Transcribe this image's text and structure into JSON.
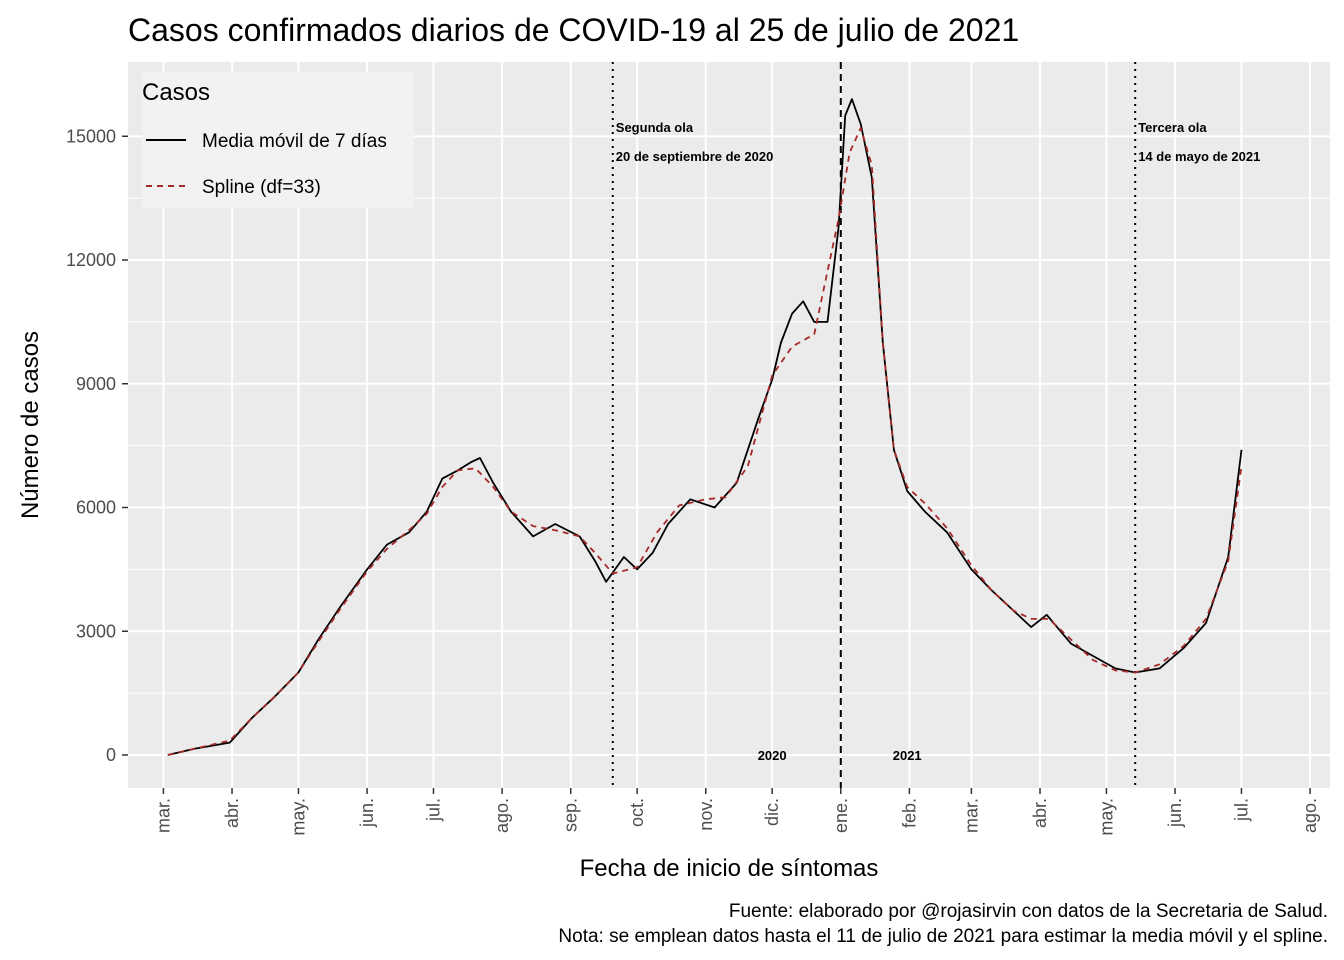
{
  "chart_data": {
    "type": "line",
    "title": "Casos confirmados diarios de COVID-19 al 25 de julio de 2021",
    "xlabel": "Fecha de inicio de síntomas",
    "ylabel": "Número de casos",
    "x_ticks": [
      "mar.",
      "abr.",
      "may.",
      "jun.",
      "jul.",
      "ago.",
      "sep.",
      "oct.",
      "nov.",
      "dic.",
      "ene.",
      "feb.",
      "mar.",
      "abr.",
      "may.",
      "jun.",
      "jul.",
      "ago."
    ],
    "x_tick_dates": [
      "2020-03-01",
      "2020-04-01",
      "2020-05-01",
      "2020-06-01",
      "2020-07-01",
      "2020-08-01",
      "2020-09-01",
      "2020-10-01",
      "2020-11-01",
      "2020-12-01",
      "2021-01-01",
      "2021-02-01",
      "2021-03-01",
      "2021-04-01",
      "2021-05-01",
      "2021-06-01",
      "2021-07-01",
      "2021-08-01"
    ],
    "xlim": [
      "2020-02-14",
      "2021-08-10"
    ],
    "y_ticks": [
      0,
      3000,
      6000,
      9000,
      12000,
      15000
    ],
    "ylim": [
      -800,
      16800
    ],
    "legend": {
      "title": "Casos",
      "position": "top-left",
      "entries": [
        "Media móvil de 7 días",
        "Spline (df=33)"
      ]
    },
    "series": [
      {
        "name": "Media móvil de 7 días",
        "color": "#000000",
        "style": "solid",
        "x": [
          "2020-03-03",
          "2020-03-15",
          "2020-03-31",
          "2020-04-10",
          "2020-04-20",
          "2020-05-01",
          "2020-05-10",
          "2020-05-20",
          "2020-06-01",
          "2020-06-10",
          "2020-06-20",
          "2020-06-28",
          "2020-07-05",
          "2020-07-12",
          "2020-07-18",
          "2020-07-22",
          "2020-07-28",
          "2020-08-05",
          "2020-08-15",
          "2020-08-25",
          "2020-09-05",
          "2020-09-12",
          "2020-09-17",
          "2020-09-25",
          "2020-10-01",
          "2020-10-08",
          "2020-10-15",
          "2020-10-25",
          "2020-11-05",
          "2020-11-15",
          "2020-11-25",
          "2020-12-01",
          "2020-12-05",
          "2020-12-10",
          "2020-12-15",
          "2020-12-20",
          "2020-12-26",
          "2020-12-31",
          "2021-01-03",
          "2021-01-06",
          "2021-01-10",
          "2021-01-15",
          "2021-01-20",
          "2021-01-25",
          "2021-01-31",
          "2021-02-08",
          "2021-02-18",
          "2021-03-01",
          "2021-03-10",
          "2021-03-20",
          "2021-03-28",
          "2021-04-04",
          "2021-04-15",
          "2021-04-25",
          "2021-05-05",
          "2021-05-14",
          "2021-05-25",
          "2021-06-05",
          "2021-06-15",
          "2021-06-25",
          "2021-07-01"
        ],
        "values": [
          0,
          150,
          300,
          900,
          1400,
          2000,
          2800,
          3600,
          4500,
          5100,
          5400,
          5900,
          6700,
          6900,
          7100,
          7200,
          6600,
          5900,
          5300,
          5600,
          5300,
          4700,
          4200,
          4800,
          4500,
          4900,
          5600,
          6200,
          6000,
          6600,
          8200,
          9100,
          10000,
          10700,
          11000,
          10500,
          10500,
          12800,
          15500,
          15900,
          15300,
          14000,
          10000,
          7400,
          6400,
          5900,
          5400,
          4500,
          4000,
          3500,
          3100,
          3400,
          2700,
          2400,
          2100,
          2000,
          2100,
          2600,
          3200,
          4800,
          7400
        ]
      },
      {
        "name": "Spline (df=33)",
        "color": "#a52a2a",
        "style": "dashed",
        "x": [
          "2020-03-03",
          "2020-03-15",
          "2020-03-31",
          "2020-04-10",
          "2020-04-20",
          "2020-05-01",
          "2020-05-10",
          "2020-05-20",
          "2020-06-01",
          "2020-06-10",
          "2020-06-20",
          "2020-06-28",
          "2020-07-05",
          "2020-07-12",
          "2020-07-20",
          "2020-07-28",
          "2020-08-05",
          "2020-08-15",
          "2020-08-25",
          "2020-09-05",
          "2020-09-12",
          "2020-09-20",
          "2020-10-01",
          "2020-10-10",
          "2020-10-20",
          "2020-11-01",
          "2020-11-10",
          "2020-11-20",
          "2020-12-01",
          "2020-12-10",
          "2020-12-20",
          "2020-12-31",
          "2021-01-05",
          "2021-01-10",
          "2021-01-15",
          "2021-01-20",
          "2021-01-25",
          "2021-01-31",
          "2021-02-08",
          "2021-02-18",
          "2021-03-01",
          "2021-03-10",
          "2021-03-20",
          "2021-03-28",
          "2021-04-05",
          "2021-04-15",
          "2021-04-25",
          "2021-05-05",
          "2021-05-14",
          "2021-05-25",
          "2021-06-05",
          "2021-06-15",
          "2021-06-25",
          "2021-07-01"
        ],
        "values": [
          0,
          150,
          350,
          900,
          1400,
          2000,
          2750,
          3550,
          4450,
          5000,
          5450,
          5850,
          6500,
          6900,
          6950,
          6500,
          5900,
          5550,
          5450,
          5300,
          4900,
          4400,
          4550,
          5400,
          6050,
          6200,
          6250,
          7000,
          9200,
          9900,
          10200,
          13000,
          14600,
          15200,
          14300,
          10000,
          7400,
          6500,
          6100,
          5500,
          4600,
          4000,
          3500,
          3300,
          3300,
          2800,
          2300,
          2050,
          2000,
          2200,
          2650,
          3300,
          4700,
          7000
        ]
      }
    ],
    "vlines": [
      {
        "date": "2020-09-20",
        "style": "dotted",
        "label_line1": "Segunda ola",
        "label_line2": "20 de septiembre de 2020"
      },
      {
        "date": "2021-01-01",
        "style": "dashed"
      },
      {
        "date": "2021-05-14",
        "style": "dotted",
        "label_line1": "Tercera ola",
        "label_line2": "14 de mayo de 2021"
      }
    ],
    "year_labels": [
      {
        "text": "2020",
        "date": "2020-12-01",
        "y": 0
      },
      {
        "text": "2021",
        "date": "2021-01-31",
        "y": 0
      }
    ],
    "caption_line1": "Fuente: elaborado por @rojasirvin con datos de la Secretaria de Salud.",
    "caption_line2": "Nota: se emplean datos hasta el 11 de julio de 2021 para estimar la media móvil y el spline.",
    "colors": {
      "panel_background": "#ebebeb",
      "gridline": "#ffffff",
      "legend_background": "#f2f2f2"
    }
  }
}
